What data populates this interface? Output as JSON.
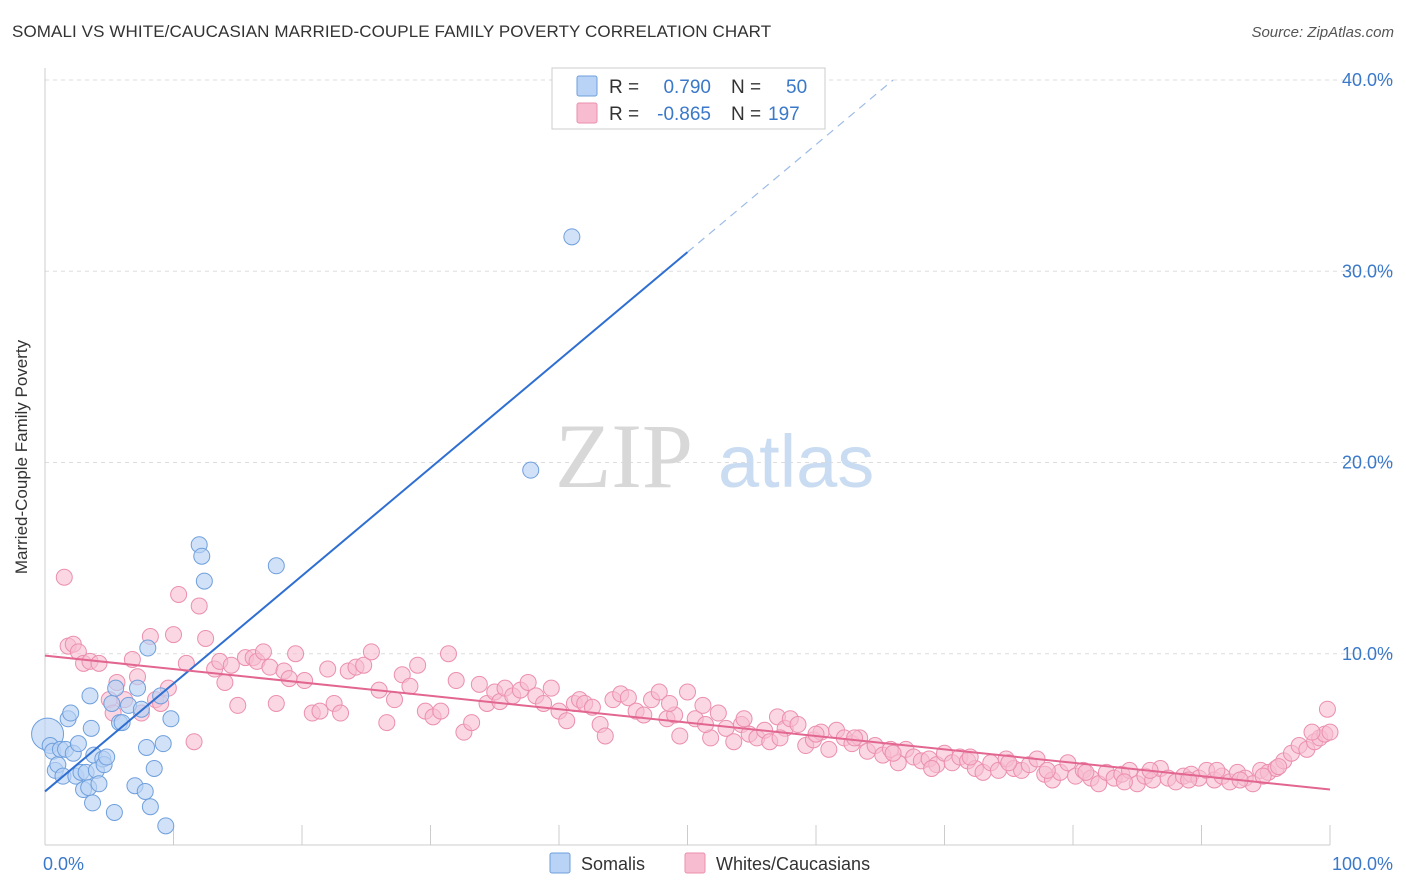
{
  "title": "SOMALI VS WHITE/CAUCASIAN MARRIED-COUPLE FAMILY POVERTY CORRELATION CHART",
  "source": "Source: ZipAtlas.com",
  "watermark": {
    "zip": "ZIP",
    "atlas": "atlas"
  },
  "colors": {
    "somali_fill": "#b8d3f5",
    "somali_stroke": "#6f9fdc",
    "somali_line": "#2f6fd1",
    "white_fill": "#f7bcd0",
    "white_stroke": "#eb8fad",
    "white_line": "#e2668f",
    "axis_text": "#3a78c9",
    "grid": "#dddddd"
  },
  "legend": {
    "rows": [
      {
        "r_label": "R =",
        "r_value": "0.790",
        "n_label": "N =",
        "n_value": "50"
      },
      {
        "r_label": "R =",
        "r_value": "-0.865",
        "n_label": "N =",
        "n_value": "197"
      }
    ]
  },
  "bottom_legend": {
    "somali": "Somalis",
    "white": "Whites/Caucasians"
  },
  "chart_data": {
    "type": "scatter",
    "title": "SOMALI VS WHITE/CAUCASIAN MARRIED-COUPLE FAMILY POVERTY CORRELATION CHART",
    "xlabel": "",
    "ylabel": "Married-Couple Family Poverty",
    "xlim": [
      0,
      100
    ],
    "ylim": [
      0,
      40
    ],
    "x_tick_labels": {
      "left": "0.0%",
      "right": "100.0%"
    },
    "y_ticks": [
      10,
      20,
      30,
      40
    ],
    "y_tick_labels": [
      "10.0%",
      "20.0%",
      "30.0%",
      "40.0%"
    ],
    "grid": true,
    "series": [
      {
        "name": "Somalis",
        "r": 0.79,
        "n": 50,
        "trend": {
          "x0": 0,
          "y0": 2.8,
          "x1": 50,
          "y1": 31.0,
          "dash_to_x": 66,
          "dash_to_y": 40.0
        },
        "points": [
          [
            0.2,
            5.8
          ],
          [
            0.4,
            5.2
          ],
          [
            0.6,
            4.9
          ],
          [
            0.8,
            3.9
          ],
          [
            1.0,
            4.2
          ],
          [
            1.2,
            5.0
          ],
          [
            1.4,
            3.6
          ],
          [
            1.6,
            5.0
          ],
          [
            1.8,
            6.6
          ],
          [
            2.0,
            6.9
          ],
          [
            2.2,
            4.8
          ],
          [
            2.4,
            3.6
          ],
          [
            2.6,
            5.3
          ],
          [
            2.8,
            3.8
          ],
          [
            3.0,
            2.9
          ],
          [
            3.2,
            3.8
          ],
          [
            3.4,
            3.0
          ],
          [
            3.5,
            7.8
          ],
          [
            3.6,
            6.1
          ],
          [
            3.7,
            2.2
          ],
          [
            3.8,
            4.7
          ],
          [
            4.0,
            3.9
          ],
          [
            4.2,
            3.2
          ],
          [
            4.5,
            4.5
          ],
          [
            4.6,
            4.2
          ],
          [
            4.8,
            4.6
          ],
          [
            5.2,
            7.4
          ],
          [
            5.4,
            1.7
          ],
          [
            5.5,
            8.2
          ],
          [
            5.8,
            6.4
          ],
          [
            6.0,
            6.4
          ],
          [
            6.5,
            7.3
          ],
          [
            7.0,
            3.1
          ],
          [
            7.2,
            8.2
          ],
          [
            7.5,
            7.1
          ],
          [
            7.8,
            2.8
          ],
          [
            7.9,
            5.1
          ],
          [
            8.0,
            10.3
          ],
          [
            8.2,
            2.0
          ],
          [
            8.5,
            4.0
          ],
          [
            9.0,
            7.8
          ],
          [
            9.2,
            5.3
          ],
          [
            9.4,
            1.0
          ],
          [
            9.8,
            6.6
          ],
          [
            12.0,
            15.7
          ],
          [
            12.2,
            15.1
          ],
          [
            12.4,
            13.8
          ],
          [
            18.0,
            14.6
          ],
          [
            37.8,
            19.6
          ],
          [
            41.0,
            31.8
          ]
        ]
      },
      {
        "name": "Whites/Caucasians",
        "r": -0.865,
        "n": 197,
        "trend": {
          "x0": 0,
          "y0": 9.9,
          "x1": 100,
          "y1": 2.9
        },
        "points": [
          [
            1.5,
            14.0
          ],
          [
            1.8,
            10.4
          ],
          [
            2.2,
            10.5
          ],
          [
            2.6,
            10.1
          ],
          [
            3.0,
            9.5
          ],
          [
            3.5,
            9.6
          ],
          [
            4.2,
            9.5
          ],
          [
            5.0,
            7.6
          ],
          [
            5.3,
            6.9
          ],
          [
            5.6,
            8.5
          ],
          [
            6.2,
            7.6
          ],
          [
            6.8,
            9.7
          ],
          [
            7.2,
            8.8
          ],
          [
            7.5,
            6.9
          ],
          [
            8.2,
            10.9
          ],
          [
            8.6,
            7.6
          ],
          [
            9.0,
            7.4
          ],
          [
            9.6,
            8.2
          ],
          [
            10.0,
            11.0
          ],
          [
            10.4,
            13.1
          ],
          [
            11.0,
            9.5
          ],
          [
            11.6,
            5.4
          ],
          [
            12.0,
            12.5
          ],
          [
            12.5,
            10.8
          ],
          [
            13.2,
            9.2
          ],
          [
            13.6,
            9.6
          ],
          [
            14.0,
            8.5
          ],
          [
            14.5,
            9.4
          ],
          [
            15.0,
            7.3
          ],
          [
            15.6,
            9.8
          ],
          [
            16.2,
            9.8
          ],
          [
            16.5,
            9.6
          ],
          [
            17.0,
            10.1
          ],
          [
            17.5,
            9.3
          ],
          [
            18.0,
            7.4
          ],
          [
            18.6,
            9.1
          ],
          [
            19.0,
            8.7
          ],
          [
            19.5,
            10.0
          ],
          [
            20.2,
            8.6
          ],
          [
            20.8,
            6.9
          ],
          [
            21.4,
            7.0
          ],
          [
            22.0,
            9.2
          ],
          [
            22.5,
            7.4
          ],
          [
            23.0,
            6.9
          ],
          [
            23.6,
            9.1
          ],
          [
            24.2,
            9.3
          ],
          [
            24.8,
            9.4
          ],
          [
            25.4,
            10.1
          ],
          [
            26.0,
            8.1
          ],
          [
            26.6,
            6.4
          ],
          [
            27.2,
            7.6
          ],
          [
            27.8,
            8.9
          ],
          [
            28.4,
            8.3
          ],
          [
            29.0,
            9.4
          ],
          [
            29.6,
            7.0
          ],
          [
            30.2,
            6.7
          ],
          [
            30.8,
            7.0
          ],
          [
            31.4,
            10.0
          ],
          [
            32.0,
            8.6
          ],
          [
            32.6,
            5.9
          ],
          [
            33.2,
            6.4
          ],
          [
            33.8,
            8.4
          ],
          [
            34.4,
            7.4
          ],
          [
            35.0,
            8.0
          ],
          [
            35.4,
            7.5
          ],
          [
            35.8,
            8.2
          ],
          [
            36.4,
            7.8
          ],
          [
            37.0,
            8.1
          ],
          [
            37.6,
            8.5
          ],
          [
            38.2,
            7.8
          ],
          [
            38.8,
            7.4
          ],
          [
            39.4,
            8.2
          ],
          [
            40.0,
            7.0
          ],
          [
            40.6,
            6.5
          ],
          [
            41.2,
            7.4
          ],
          [
            41.6,
            7.6
          ],
          [
            42.0,
            7.4
          ],
          [
            42.6,
            7.2
          ],
          [
            43.2,
            6.3
          ],
          [
            43.6,
            5.7
          ],
          [
            44.2,
            7.6
          ],
          [
            44.8,
            7.9
          ],
          [
            45.4,
            7.7
          ],
          [
            46.0,
            7.0
          ],
          [
            46.6,
            6.8
          ],
          [
            47.2,
            7.6
          ],
          [
            47.8,
            8.0
          ],
          [
            48.4,
            6.6
          ],
          [
            49.0,
            6.8
          ],
          [
            49.4,
            5.7
          ],
          [
            50.0,
            8.0
          ],
          [
            50.6,
            6.6
          ],
          [
            51.2,
            7.3
          ],
          [
            51.8,
            5.6
          ],
          [
            52.4,
            6.9
          ],
          [
            53.0,
            6.1
          ],
          [
            53.6,
            5.4
          ],
          [
            54.2,
            6.3
          ],
          [
            54.8,
            5.8
          ],
          [
            55.4,
            5.6
          ],
          [
            56.0,
            6.0
          ],
          [
            56.4,
            5.4
          ],
          [
            57.0,
            6.7
          ],
          [
            57.6,
            6.1
          ],
          [
            58.0,
            6.6
          ],
          [
            58.6,
            6.3
          ],
          [
            59.2,
            5.2
          ],
          [
            59.8,
            5.5
          ],
          [
            60.4,
            5.9
          ],
          [
            61.0,
            5.0
          ],
          [
            61.6,
            6.0
          ],
          [
            62.2,
            5.6
          ],
          [
            62.8,
            5.3
          ],
          [
            63.4,
            5.6
          ],
          [
            64.0,
            4.9
          ],
          [
            64.6,
            5.2
          ],
          [
            65.2,
            4.7
          ],
          [
            65.8,
            5.0
          ],
          [
            66.4,
            4.3
          ],
          [
            67.0,
            5.0
          ],
          [
            67.6,
            4.6
          ],
          [
            68.2,
            4.4
          ],
          [
            68.8,
            4.5
          ],
          [
            69.4,
            4.2
          ],
          [
            70.0,
            4.8
          ],
          [
            70.6,
            4.3
          ],
          [
            71.2,
            4.6
          ],
          [
            71.8,
            4.4
          ],
          [
            72.4,
            4.0
          ],
          [
            73.0,
            3.8
          ],
          [
            73.6,
            4.3
          ],
          [
            74.2,
            3.9
          ],
          [
            74.8,
            4.5
          ],
          [
            75.4,
            4.0
          ],
          [
            76.0,
            3.9
          ],
          [
            76.6,
            4.2
          ],
          [
            77.2,
            4.5
          ],
          [
            77.8,
            3.7
          ],
          [
            78.4,
            3.4
          ],
          [
            79.0,
            3.8
          ],
          [
            79.6,
            4.3
          ],
          [
            80.2,
            3.6
          ],
          [
            80.8,
            3.9
          ],
          [
            81.4,
            3.5
          ],
          [
            82.0,
            3.2
          ],
          [
            82.6,
            3.8
          ],
          [
            83.2,
            3.5
          ],
          [
            83.8,
            3.7
          ],
          [
            84.4,
            3.9
          ],
          [
            85.0,
            3.2
          ],
          [
            85.6,
            3.6
          ],
          [
            86.2,
            3.4
          ],
          [
            86.8,
            4.0
          ],
          [
            87.4,
            3.5
          ],
          [
            88.0,
            3.3
          ],
          [
            88.6,
            3.6
          ],
          [
            89.2,
            3.7
          ],
          [
            89.8,
            3.5
          ],
          [
            90.4,
            3.9
          ],
          [
            91.0,
            3.4
          ],
          [
            91.6,
            3.6
          ],
          [
            92.2,
            3.3
          ],
          [
            92.8,
            3.8
          ],
          [
            93.4,
            3.5
          ],
          [
            94.0,
            3.2
          ],
          [
            94.6,
            3.9
          ],
          [
            95.2,
            3.8
          ],
          [
            95.8,
            4.0
          ],
          [
            96.4,
            4.4
          ],
          [
            97.0,
            4.8
          ],
          [
            97.6,
            5.2
          ],
          [
            98.2,
            5.0
          ],
          [
            98.8,
            5.4
          ],
          [
            99.2,
            5.6
          ],
          [
            99.6,
            5.8
          ],
          [
            100.0,
            5.9
          ],
          [
            99.8,
            7.1
          ],
          [
            98.6,
            5.9
          ],
          [
            96.0,
            4.1
          ],
          [
            94.8,
            3.6
          ],
          [
            93.0,
            3.4
          ],
          [
            91.2,
            3.9
          ],
          [
            89.0,
            3.4
          ],
          [
            86.0,
            3.9
          ],
          [
            84.0,
            3.3
          ],
          [
            81.0,
            3.8
          ],
          [
            78.0,
            3.9
          ],
          [
            75.0,
            4.3
          ],
          [
            72.0,
            4.6
          ],
          [
            69.0,
            4.0
          ],
          [
            66.0,
            4.8
          ],
          [
            63.0,
            5.6
          ],
          [
            60.0,
            5.8
          ],
          [
            57.2,
            5.6
          ],
          [
            54.4,
            6.6
          ],
          [
            51.4,
            6.3
          ],
          [
            48.6,
            7.4
          ]
        ]
      }
    ]
  }
}
